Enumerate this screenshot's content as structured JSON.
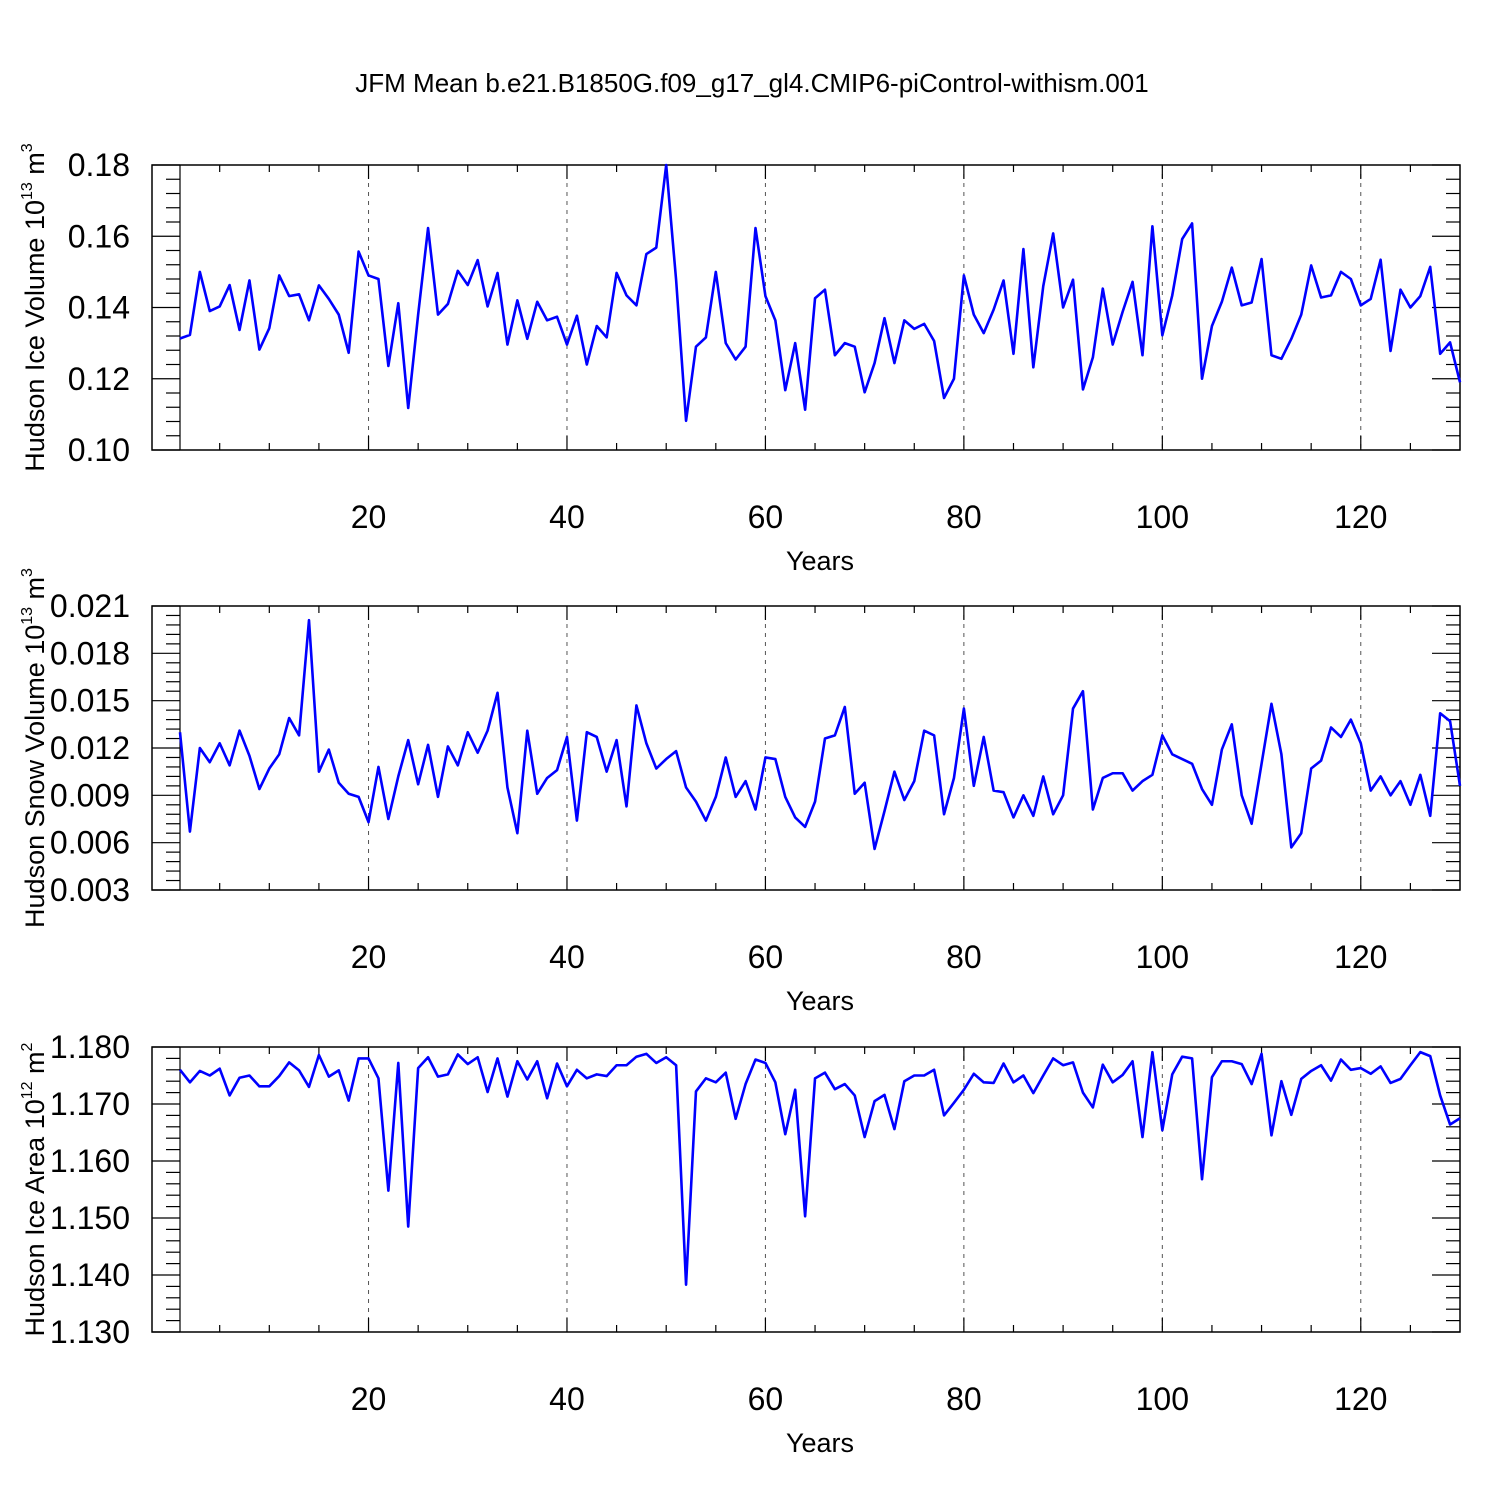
{
  "chart_data": {
    "type": "line",
    "title": "JFM Mean b.e21.B1850G.f09_g17_gl4.CMIP6-piControl-withism.001",
    "panels": [
      {
        "ylabel": "Hudson Ice Volume 10",
        "ylabel_exp": "13",
        "ylabel_unit": " m",
        "ylabel_unit_exp": "3",
        "xlabel": "Years",
        "xlim": [
          1,
          130
        ],
        "ylim": [
          0.1,
          0.18
        ],
        "xticks": [
          20,
          40,
          60,
          80,
          100,
          120
        ],
        "xtick_labels": [
          "20",
          "40",
          "60",
          "80",
          "100",
          "120"
        ],
        "yticks": [
          0.1,
          0.12,
          0.14,
          0.16,
          0.18
        ],
        "ytick_labels": [
          "0.10",
          "0.12",
          "0.14",
          "0.16",
          "0.18"
        ],
        "grid_x": true,
        "series": [
          {
            "color": "#0000ff",
            "x_start": 1,
            "values": [
              0.1313,
              0.1323,
              0.15,
              0.139,
              0.1403,
              0.1463,
              0.1337,
              0.1476,
              0.1282,
              0.1342,
              0.149,
              0.1432,
              0.1437,
              0.1364,
              0.1462,
              0.1424,
              0.138,
              0.1273,
              0.1557,
              0.149,
              0.148,
              0.1236,
              0.1412,
              0.1118,
              0.138,
              0.1623,
              0.138,
              0.141,
              0.1503,
              0.1463,
              0.1533,
              0.1403,
              0.1497,
              0.1296,
              0.142,
              0.1312,
              0.1416,
              0.1364,
              0.1374,
              0.1296,
              0.1377,
              0.124,
              0.1348,
              0.1316,
              0.1497,
              0.1434,
              0.1406,
              0.155,
              0.1568,
              0.18,
              0.1477,
              0.1082,
              0.129,
              0.1316,
              0.15,
              0.13,
              0.1254,
              0.129,
              0.1623,
              0.1432,
              0.1364,
              0.1168,
              0.13,
              0.1113,
              0.1426,
              0.145,
              0.1266,
              0.13,
              0.129,
              0.1162,
              0.1244,
              0.137,
              0.1244,
              0.1364,
              0.134,
              0.1354,
              0.1306,
              0.1146,
              0.12,
              0.149,
              0.138,
              0.1328,
              0.1394,
              0.1476,
              0.127,
              0.1564,
              0.1232,
              0.146,
              0.1608,
              0.14,
              0.1478,
              0.117,
              0.126,
              0.1453,
              0.1296,
              0.1388,
              0.1472,
              0.1266,
              0.1628,
              0.1322,
              0.1434,
              0.1592,
              0.1636,
              0.12,
              0.1348,
              0.1416,
              0.1512,
              0.1406,
              0.1414,
              0.1536,
              0.1266,
              0.1256,
              0.1312,
              0.138,
              0.1518,
              0.1428,
              0.1434,
              0.15,
              0.148,
              0.1406,
              0.1424,
              0.1534,
              0.1278,
              0.145,
              0.14,
              0.1432,
              0.1514,
              0.127,
              0.1302,
              0.119
            ]
          }
        ]
      },
      {
        "ylabel": "Hudson Snow Volume 10",
        "ylabel_exp": "13",
        "ylabel_unit": " m",
        "ylabel_unit_exp": "3",
        "xlabel": "Years",
        "xlim": [
          1,
          130
        ],
        "ylim": [
          0.003,
          0.021
        ],
        "xticks": [
          20,
          40,
          60,
          80,
          100,
          120
        ],
        "xtick_labels": [
          "20",
          "40",
          "60",
          "80",
          "100",
          "120"
        ],
        "yticks": [
          0.003,
          0.006,
          0.009,
          0.012,
          0.015,
          0.018,
          0.021
        ],
        "ytick_labels": [
          "0.003",
          "0.006",
          "0.009",
          "0.012",
          "0.015",
          "0.018",
          "0.021"
        ],
        "grid_x": true,
        "series": [
          {
            "color": "#0000ff",
            "x_start": 1,
            "values": [
              0.013,
              0.0067,
              0.012,
              0.0111,
              0.0123,
              0.0109,
              0.0131,
              0.0115,
              0.0094,
              0.0107,
              0.0116,
              0.0139,
              0.0128,
              0.0201,
              0.0105,
              0.0119,
              0.0098,
              0.0091,
              0.0089,
              0.0073,
              0.0108,
              0.0075,
              0.0102,
              0.0125,
              0.0097,
              0.0122,
              0.0089,
              0.0121,
              0.0109,
              0.013,
              0.0117,
              0.0131,
              0.0155,
              0.0095,
              0.0066,
              0.0131,
              0.0091,
              0.0101,
              0.0106,
              0.0127,
              0.0074,
              0.013,
              0.0127,
              0.0105,
              0.0125,
              0.0083,
              0.0147,
              0.0123,
              0.0107,
              0.0113,
              0.0118,
              0.0095,
              0.0086,
              0.0074,
              0.0089,
              0.0114,
              0.0089,
              0.0099,
              0.0081,
              0.0114,
              0.0113,
              0.0089,
              0.0076,
              0.007,
              0.0086,
              0.0126,
              0.0128,
              0.0146,
              0.0091,
              0.0098,
              0.0056,
              0.008,
              0.0105,
              0.0087,
              0.0099,
              0.0131,
              0.0128,
              0.0078,
              0.0101,
              0.0145,
              0.0096,
              0.0127,
              0.0093,
              0.0092,
              0.0076,
              0.009,
              0.0077,
              0.0102,
              0.0078,
              0.009,
              0.0145,
              0.0156,
              0.0081,
              0.0101,
              0.0104,
              0.0104,
              0.0093,
              0.0099,
              0.0103,
              0.0128,
              0.0116,
              0.0113,
              0.011,
              0.0094,
              0.0084,
              0.0119,
              0.0135,
              0.009,
              0.0072,
              0.011,
              0.0148,
              0.0116,
              0.0057,
              0.0066,
              0.0107,
              0.0112,
              0.0133,
              0.0127,
              0.0138,
              0.0123,
              0.0093,
              0.0102,
              0.009,
              0.0099,
              0.0084,
              0.0103,
              0.0077,
              0.0142,
              0.0137,
              0.0096
            ]
          }
        ]
      },
      {
        "ylabel": "Hudson Ice Area 10",
        "ylabel_exp": "12",
        "ylabel_unit": " m",
        "ylabel_unit_exp": "2",
        "xlabel": "Years",
        "xlim": [
          1,
          130
        ],
        "ylim": [
          1.13,
          1.18
        ],
        "xticks": [
          20,
          40,
          60,
          80,
          100,
          120
        ],
        "xtick_labels": [
          "20",
          "40",
          "60",
          "80",
          "100",
          "120"
        ],
        "yticks": [
          1.13,
          1.14,
          1.15,
          1.16,
          1.17,
          1.18
        ],
        "ytick_labels": [
          "1.130",
          "1.140",
          "1.150",
          "1.160",
          "1.170",
          "1.180"
        ],
        "grid_x": true,
        "series": [
          {
            "color": "#0000ff",
            "x_start": 1,
            "values": [
              1.176,
              1.1738,
              1.1758,
              1.175,
              1.1762,
              1.1715,
              1.1746,
              1.175,
              1.1731,
              1.1731,
              1.1749,
              1.1773,
              1.1759,
              1.173,
              1.1786,
              1.1748,
              1.1759,
              1.1706,
              1.178,
              1.178,
              1.1745,
              1.1548,
              1.1772,
              1.1485,
              1.1763,
              1.1782,
              1.1748,
              1.1752,
              1.1787,
              1.177,
              1.1782,
              1.1721,
              1.178,
              1.1713,
              1.1775,
              1.1743,
              1.1775,
              1.171,
              1.1771,
              1.1731,
              1.176,
              1.1745,
              1.1752,
              1.1749,
              1.1768,
              1.1768,
              1.1783,
              1.1788,
              1.1772,
              1.1782,
              1.1768,
              1.1383,
              1.1722,
              1.1745,
              1.1738,
              1.1755,
              1.1674,
              1.1735,
              1.1778,
              1.1772,
              1.1738,
              1.1647,
              1.1725,
              1.1503,
              1.1745,
              1.1755,
              1.1726,
              1.1735,
              1.1715,
              1.1642,
              1.1705,
              1.1716,
              1.1656,
              1.174,
              1.175,
              1.175,
              1.176,
              1.168,
              1.1702,
              1.1725,
              1.1753,
              1.1738,
              1.1737,
              1.1771,
              1.1738,
              1.175,
              1.1719,
              1.175,
              1.178,
              1.1768,
              1.1773,
              1.172,
              1.1694,
              1.1769,
              1.1738,
              1.1751,
              1.1775,
              1.1642,
              1.1791,
              1.1654,
              1.1752,
              1.1783,
              1.178,
              1.1568,
              1.1747,
              1.1775,
              1.1775,
              1.177,
              1.1735,
              1.1788,
              1.1645,
              1.174,
              1.1681,
              1.1744,
              1.1758,
              1.1768,
              1.1741,
              1.1778,
              1.176,
              1.1763,
              1.1753,
              1.1766,
              1.1737,
              1.1744,
              1.1768,
              1.1791,
              1.1784,
              1.1715,
              1.1664,
              1.1675
            ]
          }
        ]
      }
    ]
  }
}
